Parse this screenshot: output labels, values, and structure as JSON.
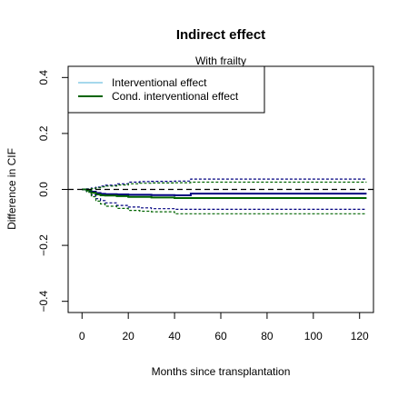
{
  "chart_data": {
    "type": "line",
    "title": "Indirect effect",
    "subtitle": "With frailty",
    "xlabel": "Months since transplantation",
    "ylabel": "Difference in CIF",
    "xlim": [
      -6,
      126
    ],
    "ylim": [
      -0.44,
      0.44
    ],
    "xticks": [
      0,
      20,
      40,
      60,
      80,
      100,
      120
    ],
    "yticks": [
      -0.4,
      -0.2,
      0.0,
      0.2,
      0.4
    ],
    "xtick_labels": [
      "0",
      "20",
      "40",
      "60",
      "80",
      "100",
      "120"
    ],
    "ytick_labels": [
      "−0.4",
      "−0.2",
      "0.0",
      "0.2",
      "0.4"
    ],
    "reference_line": {
      "y": 0,
      "style": "dashed",
      "color": "#000000"
    },
    "legend": {
      "position": "top-left",
      "entries": [
        {
          "label": "Interventional effect",
          "color": "#a6d8ec"
        },
        {
          "label": "Cond. interventional effect",
          "color": "#006400"
        }
      ]
    },
    "series": [
      {
        "color": "#000080",
        "style": "solid",
        "x": [
          0,
          2,
          4,
          6,
          8,
          10,
          15,
          20,
          30,
          40,
          47,
          60,
          80,
          100,
          123
        ],
        "y": [
          0,
          -0.003,
          -0.008,
          -0.013,
          -0.016,
          -0.017,
          -0.018,
          -0.019,
          -0.02,
          -0.021,
          -0.015,
          -0.015,
          -0.015,
          -0.015,
          -0.015
        ]
      },
      {
        "color": "#006400",
        "style": "solid",
        "x": [
          0,
          2,
          4,
          6,
          8,
          10,
          15,
          20,
          30,
          40,
          47,
          60,
          80,
          100,
          123
        ],
        "y": [
          0,
          -0.004,
          -0.012,
          -0.018,
          -0.021,
          -0.022,
          -0.024,
          -0.027,
          -0.029,
          -0.031,
          -0.031,
          -0.031,
          -0.031,
          -0.031,
          -0.031
        ]
      },
      {
        "color": "#000080",
        "style": "dotted",
        "x": [
          0,
          2,
          4,
          6,
          8,
          10,
          15,
          20,
          25,
          30,
          40,
          47,
          60,
          80,
          100,
          123
        ],
        "y": [
          0,
          0.002,
          0.005,
          0.008,
          0.012,
          0.015,
          0.02,
          0.026,
          0.028,
          0.029,
          0.03,
          0.037,
          0.037,
          0.037,
          0.037,
          0.037
        ]
      },
      {
        "color": "#000080",
        "style": "dotted",
        "x": [
          0,
          2,
          4,
          6,
          8,
          10,
          15,
          20,
          25,
          30,
          40,
          47,
          60,
          80,
          100,
          123
        ],
        "y": [
          0,
          -0.008,
          -0.02,
          -0.033,
          -0.04,
          -0.048,
          -0.057,
          -0.063,
          -0.066,
          -0.069,
          -0.071,
          -0.071,
          -0.071,
          -0.071,
          -0.071,
          -0.071
        ]
      },
      {
        "color": "#006400",
        "style": "dotted",
        "x": [
          0,
          2,
          4,
          6,
          8,
          10,
          15,
          20,
          25,
          30,
          40,
          47,
          60,
          80,
          100,
          123
        ],
        "y": [
          0,
          0.001,
          0.003,
          0.006,
          0.009,
          0.012,
          0.016,
          0.02,
          0.022,
          0.023,
          0.024,
          0.026,
          0.026,
          0.026,
          0.026,
          0.026
        ]
      },
      {
        "color": "#006400",
        "style": "dotted",
        "x": [
          0,
          2,
          4,
          6,
          8,
          10,
          15,
          20,
          25,
          30,
          40,
          47,
          60,
          80,
          100,
          123
        ],
        "y": [
          0,
          -0.01,
          -0.026,
          -0.042,
          -0.052,
          -0.06,
          -0.068,
          -0.075,
          -0.078,
          -0.08,
          -0.087,
          -0.087,
          -0.087,
          -0.087,
          -0.087,
          -0.087
        ]
      }
    ]
  }
}
